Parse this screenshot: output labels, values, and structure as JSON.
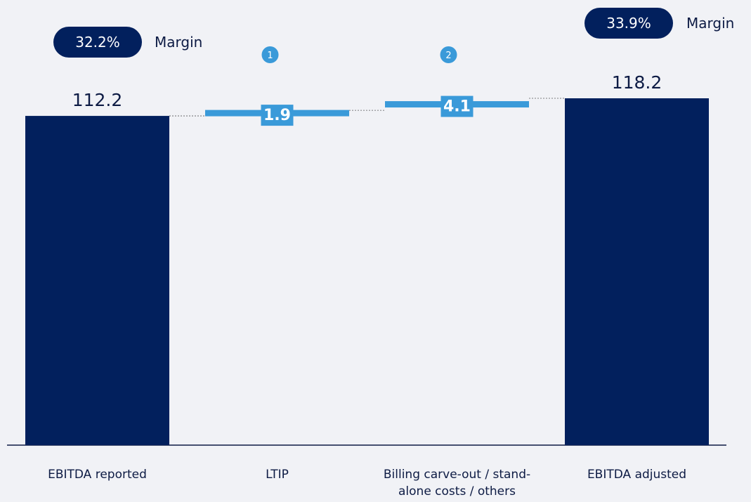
{
  "chart_data": {
    "type": "bar",
    "subtype": "waterfall",
    "categories": [
      [
        "EBITDA reported"
      ],
      [
        "LTIP"
      ],
      [
        "Billing carve-out / stand-",
        "alone costs / others"
      ],
      [
        "EBITDA adjusted"
      ]
    ],
    "steps": [
      {
        "kind": "total",
        "value": 112.2,
        "label": "112.2"
      },
      {
        "kind": "delta",
        "value": 1.9,
        "label": "1.9",
        "badge": "1"
      },
      {
        "kind": "delta",
        "value": 4.1,
        "label": "4.1",
        "badge": "2"
      },
      {
        "kind": "total",
        "value": 118.2,
        "label": "118.2"
      }
    ],
    "margins": [
      {
        "value": "32.2%",
        "text": "Margin"
      },
      {
        "value": "33.9%",
        "text": "Margin"
      }
    ],
    "ylim": [
      0,
      118.2
    ],
    "grid": false,
    "legend": "none",
    "colors": {
      "total": "#02205d",
      "delta": "#3a9ad9",
      "axis": "#0d1b44",
      "text": "#0d1b44",
      "connector": "#555555",
      "background": "#f1f2f6"
    }
  }
}
